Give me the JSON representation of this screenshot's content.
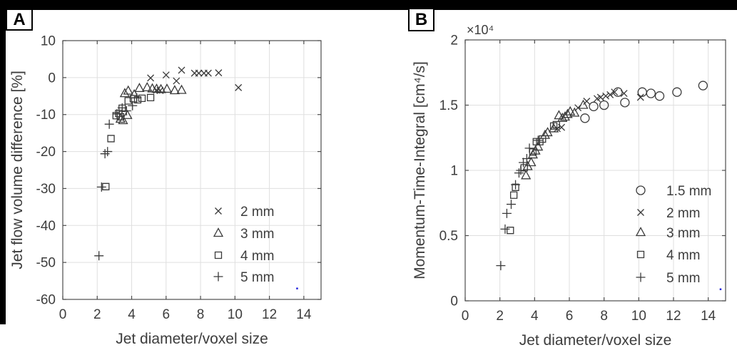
{
  "figure": {
    "panels": [
      {
        "badge": "A"
      },
      {
        "badge": "B"
      }
    ]
  },
  "colors": {
    "marker": "#3a3a3a",
    "axis": "#4d4d4d",
    "grid": "#dfdfdf",
    "text": "#3d3d3d",
    "frame": "#000000",
    "stray_dot": "#2222dd",
    "background": "#ffffff"
  },
  "chart_data": [
    {
      "type": "scatter",
      "panel": "A",
      "title": "",
      "xlabel": "Jet diameter/voxel size",
      "ylabel": "Jet flow volume difference [%]",
      "xlim": [
        0,
        15
      ],
      "ylim": [
        -60,
        10
      ],
      "xticks": [
        0,
        2,
        4,
        6,
        8,
        10,
        12,
        14
      ],
      "yticks": [
        10,
        0,
        -10,
        -20,
        -30,
        -40,
        -50,
        -60
      ],
      "grid": true,
      "legend_position": "lower right",
      "series": [
        {
          "name": "2 mm",
          "marker": "x",
          "points": [
            [
              5.1,
              -0.1
            ],
            [
              5.45,
              -3.4
            ],
            [
              5.65,
              -3.5
            ],
            [
              6.0,
              0.7
            ],
            [
              6.6,
              -0.9
            ],
            [
              6.9,
              2.0
            ],
            [
              7.65,
              1.2
            ],
            [
              7.9,
              1.2
            ],
            [
              8.2,
              1.2
            ],
            [
              8.45,
              1.2
            ],
            [
              9.05,
              1.3
            ],
            [
              10.2,
              -2.7
            ]
          ]
        },
        {
          "name": "3 mm",
          "marker": "triangle",
          "points": [
            [
              3.35,
              -11.2
            ],
            [
              3.5,
              -11.6
            ],
            [
              3.75,
              -10.2
            ],
            [
              3.8,
              -3.6
            ],
            [
              4.15,
              -4.6
            ],
            [
              4.45,
              -2.9
            ],
            [
              4.9,
              -2.7
            ],
            [
              5.2,
              -3.0
            ],
            [
              5.45,
              -3.1
            ],
            [
              5.7,
              -3.2
            ],
            [
              6.05,
              -3.1
            ],
            [
              6.5,
              -3.5
            ],
            [
              6.9,
              -3.4
            ],
            [
              3.6,
              -4.3
            ]
          ]
        },
        {
          "name": "4 mm",
          "marker": "square",
          "points": [
            [
              2.5,
              -29.5
            ],
            [
              2.8,
              -16.5
            ],
            [
              3.1,
              -10.3
            ],
            [
              3.25,
              -9.7
            ],
            [
              3.35,
              -10.6
            ],
            [
              3.45,
              -8.3
            ],
            [
              3.8,
              -6.3
            ],
            [
              4.1,
              -5.7
            ],
            [
              4.35,
              -6.0
            ],
            [
              4.6,
              -5.6
            ],
            [
              5.1,
              -5.4
            ]
          ]
        },
        {
          "name": "5 mm",
          "marker": "plus",
          "points": [
            [
              2.1,
              -48.2
            ],
            [
              2.25,
              -29.6
            ],
            [
              2.45,
              -20.6
            ],
            [
              2.6,
              -20.0
            ],
            [
              2.7,
              -12.6
            ],
            [
              3.15,
              -9.8
            ],
            [
              3.45,
              -8.2
            ],
            [
              3.7,
              -9.0
            ],
            [
              4.05,
              -7.6
            ],
            [
              4.3,
              -5.5
            ]
          ]
        }
      ],
      "stray_dot": [
        13.6,
        -57.0
      ]
    },
    {
      "type": "scatter",
      "panel": "B",
      "title": "",
      "xlabel": "Jet diameter/voxel size",
      "ylabel": "Momentum-Time-Integral [cm⁴/s]",
      "y_scale_label": "×10⁴",
      "xlim": [
        0,
        15
      ],
      "ylim": [
        0,
        2
      ],
      "xticks": [
        0,
        2,
        4,
        6,
        8,
        10,
        12,
        14
      ],
      "yticks": [
        2,
        1.5,
        1,
        0.5,
        0
      ],
      "grid": true,
      "legend_position": "lower right",
      "series": [
        {
          "name": "1.5 mm",
          "marker": "circle",
          "points": [
            [
              6.9,
              1.4
            ],
            [
              7.4,
              1.49
            ],
            [
              8.0,
              1.5
            ],
            [
              8.8,
              1.6
            ],
            [
              9.2,
              1.52
            ],
            [
              10.2,
              1.6
            ],
            [
              10.7,
              1.59
            ],
            [
              11.2,
              1.57
            ],
            [
              12.2,
              1.6
            ],
            [
              13.7,
              1.65
            ]
          ]
        },
        {
          "name": "2 mm",
          "marker": "x",
          "points": [
            [
              5.3,
              1.32
            ],
            [
              5.55,
              1.33
            ],
            [
              6.5,
              1.48
            ],
            [
              7.0,
              1.53
            ],
            [
              7.6,
              1.55
            ],
            [
              7.8,
              1.56
            ],
            [
              8.1,
              1.57
            ],
            [
              8.35,
              1.58
            ],
            [
              8.6,
              1.6
            ],
            [
              9.15,
              1.59
            ],
            [
              10.1,
              1.56
            ]
          ]
        },
        {
          "name": "3 mm",
          "marker": "triangle",
          "points": [
            [
              3.5,
              0.96
            ],
            [
              3.6,
              1.03
            ],
            [
              3.8,
              1.06
            ],
            [
              3.9,
              1.12
            ],
            [
              4.05,
              1.15
            ],
            [
              4.2,
              1.18
            ],
            [
              4.6,
              1.27
            ],
            [
              4.75,
              1.29
            ],
            [
              5.1,
              1.32
            ],
            [
              5.4,
              1.42
            ],
            [
              5.6,
              1.4
            ],
            [
              5.75,
              1.41
            ],
            [
              5.9,
              1.43
            ],
            [
              6.05,
              1.45
            ],
            [
              6.3,
              1.44
            ],
            [
              6.8,
              1.5
            ]
          ]
        },
        {
          "name": "4 mm",
          "marker": "square",
          "points": [
            [
              2.6,
              0.54
            ],
            [
              2.8,
              0.81
            ],
            [
              2.9,
              0.87
            ],
            [
              3.4,
              1.02
            ],
            [
              3.9,
              1.14
            ],
            [
              4.1,
              1.22
            ],
            [
              4.3,
              1.22
            ],
            [
              4.45,
              1.24
            ],
            [
              5.1,
              1.34
            ],
            [
              5.25,
              1.35
            ]
          ]
        },
        {
          "name": "5 mm",
          "marker": "plus",
          "points": [
            [
              2.05,
              0.27
            ],
            [
              2.3,
              0.55
            ],
            [
              2.4,
              0.67
            ],
            [
              2.65,
              0.74
            ],
            [
              2.9,
              0.89
            ],
            [
              3.1,
              0.98
            ],
            [
              3.2,
              1.0
            ],
            [
              3.35,
              1.06
            ],
            [
              3.55,
              1.09
            ],
            [
              3.7,
              1.17
            ],
            [
              4.2,
              1.23
            ]
          ]
        }
      ],
      "stray_dot": [
        14.7,
        0.09
      ]
    }
  ]
}
